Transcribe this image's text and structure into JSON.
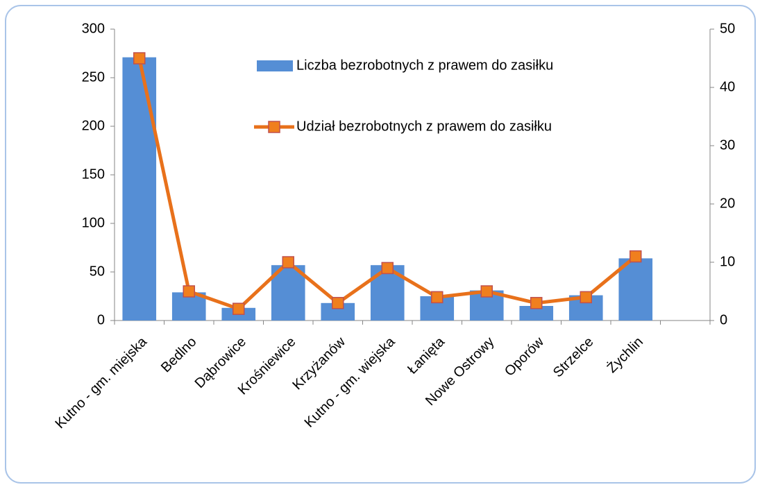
{
  "chart_data": {
    "type": "bar",
    "categories": [
      "Kutno - gm. miejska",
      "Bedlno",
      "Dąbrowice",
      "Krośniewice",
      "Krzyżanów",
      "Kutno - gm. wiejska",
      "Łanięta",
      "Nowe Ostrowy",
      "Oporów",
      "Strzelce",
      "Żychlin",
      null
    ],
    "series": [
      {
        "name": "Liczba bezrobotnych z prawem do zasiłku",
        "type": "bar",
        "axis": "y",
        "color": "#558ed5",
        "values": [
          271,
          29,
          13,
          57,
          18,
          57,
          25,
          31,
          15,
          26,
          64,
          null
        ]
      },
      {
        "name": "Udział bezrobotnych z prawem do zasiłku",
        "type": "line",
        "axis": "y2",
        "color": "#e8711b",
        "marker_edge": "#c0504d",
        "marker_fill": "#f07f1e",
        "values": [
          45,
          5,
          2,
          10,
          3,
          9,
          4,
          5,
          3,
          4,
          11,
          null
        ]
      }
    ],
    "ylim": [
      0,
      300
    ],
    "yticks": [
      0,
      50,
      100,
      150,
      200,
      250,
      300
    ],
    "y2lim": [
      0,
      50
    ],
    "y2ticks": [
      0,
      10,
      20,
      30,
      40,
      50
    ],
    "grid": false
  }
}
